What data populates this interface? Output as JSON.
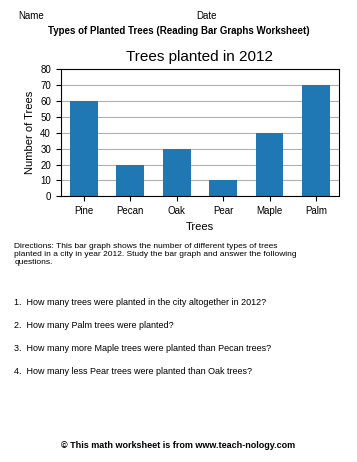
{
  "chart_data": {
    "type": "bar",
    "title": "Trees planted in 2012",
    "subtitle": "Types of Planted Trees (Reading Bar Graphs Worksheet)",
    "categories": [
      "Pine",
      "Pecan",
      "Oak",
      "Pear",
      "Maple",
      "Palm"
    ],
    "values": [
      60,
      20,
      30,
      10,
      40,
      70
    ],
    "xlabel": "Trees",
    "ylabel": "Number of Trees",
    "ylim": [
      0,
      80
    ],
    "yticks": [
      0,
      10,
      20,
      30,
      40,
      50,
      60,
      70,
      80
    ],
    "grid": true,
    "annotations": [
      "Name",
      "Date",
      "Directions: This bar graph shows the number of different types of trees\nplanted in a city in year 2012. Study the bar graph and answer the following\nquestions.",
      "1.  How many trees were planted in the city altogether in 2012?",
      "2.  How many Palm trees were planted?",
      "3.  How many more Maple trees were planted than Pecan trees?",
      "4.  How many less Pear trees were planted than Oak trees?",
      "© This math worksheet is from www.teach-nology.com"
    ]
  }
}
